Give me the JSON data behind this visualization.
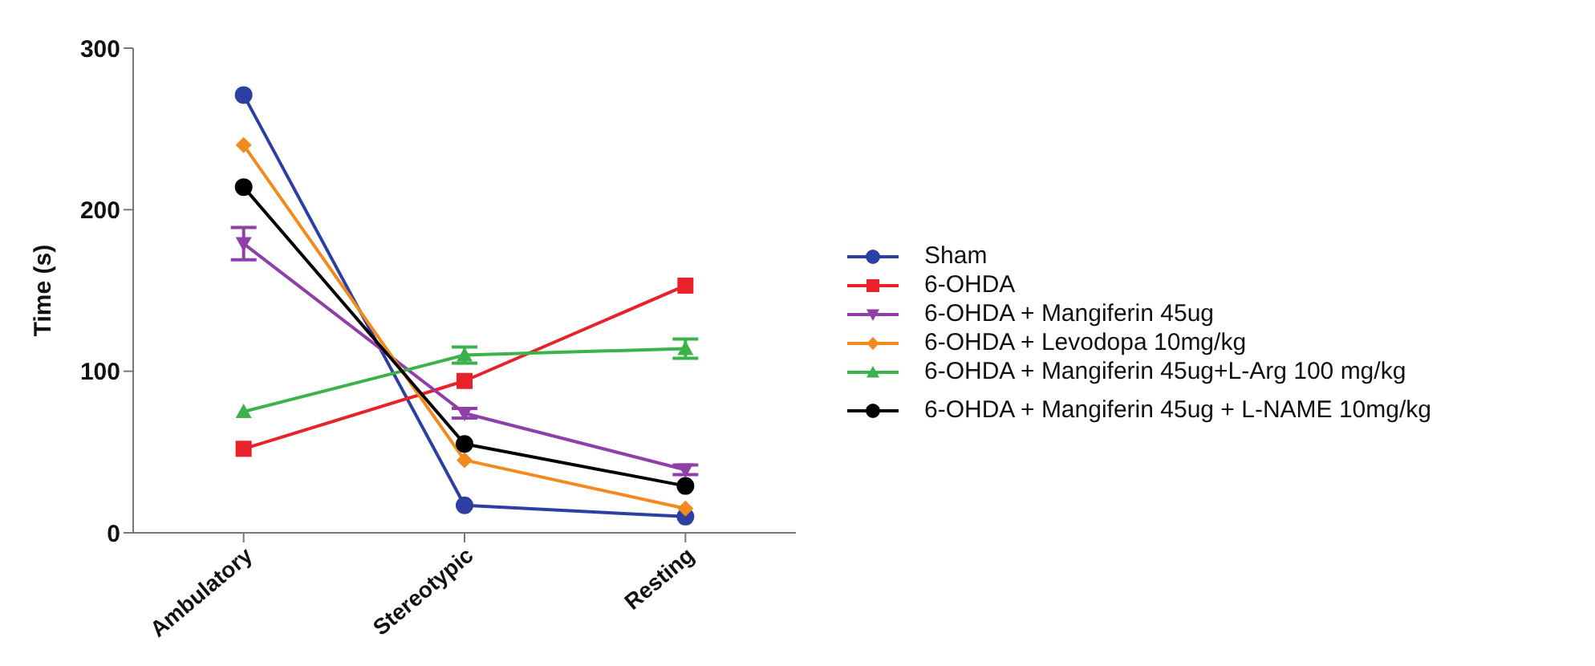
{
  "chart_data": {
    "type": "line",
    "ylabel": "Time (s)",
    "categories": [
      "Ambulatory",
      "Stereotypic",
      "Resting"
    ],
    "ylim": [
      0,
      300
    ],
    "yticks": [
      0,
      100,
      200,
      300
    ],
    "grid": false,
    "legend": "right",
    "series": [
      {
        "name": "Sham",
        "color": "#2e3fa3",
        "marker": "circle",
        "values": [
          271,
          17,
          10
        ]
      },
      {
        "name": "6-OHDA",
        "color": "#e8212b",
        "marker": "square",
        "values": [
          52,
          94,
          153
        ]
      },
      {
        "name": "6-OHDA + Mangiferin 45ug",
        "color": "#8e3fa8",
        "marker": "triangle-down",
        "values": [
          179,
          74,
          39
        ],
        "errors": [
          10,
          3,
          3
        ]
      },
      {
        "name": "6-OHDA + Levodopa 10mg/kg",
        "color": "#f28a1e",
        "marker": "diamond",
        "values": [
          240,
          45,
          15
        ]
      },
      {
        "name": "6-OHDA + Mangiferin 45ug+L-Arg 100 mg/kg",
        "color": "#3bb34a",
        "marker": "triangle",
        "values": [
          75,
          110,
          114
        ],
        "errors": [
          null,
          5,
          6
        ]
      },
      {
        "name": "6-OHDA + Mangiferin 45ug + L-NAME 10mg/kg",
        "color": "#000000",
        "marker": "circle",
        "values": [
          214,
          55,
          29
        ]
      }
    ]
  }
}
